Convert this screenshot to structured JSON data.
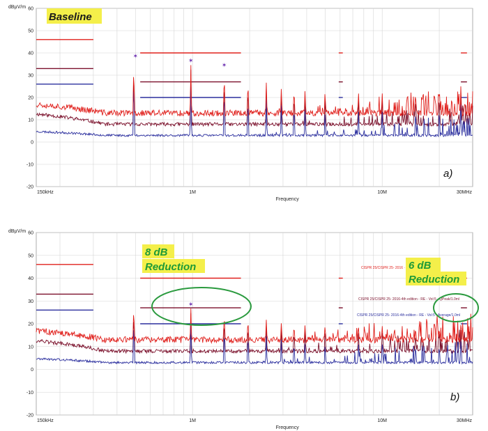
{
  "colors": {
    "peak": "#e0201c",
    "quasi_peak": "#7a0f2a",
    "average": "#2b2f9e",
    "grid": "#d4d4d4",
    "highlight": "#f4ef4a",
    "ellipse": "#2a9a3e",
    "reduction_text": "#1e9a37"
  },
  "chart_data": [
    {
      "type": "line",
      "panel_label": "a)",
      "annotations": [
        {
          "text": "Baseline"
        }
      ],
      "ylabel": "dBµV/m",
      "xlabel": "Frequency",
      "x_scale": "log",
      "xlim_hz": [
        150000,
        30000000
      ],
      "ylim": [
        -20,
        60
      ],
      "yticks": [
        60,
        50,
        40,
        30,
        20,
        10,
        0,
        -10,
        -20
      ],
      "ytick_labels": [
        "60",
        "50",
        "40",
        "30",
        "20",
        "10",
        "0",
        "-10",
        "-20"
      ],
      "xticks": [
        "150kHz",
        "1M",
        "Frequency",
        "10M",
        "30MHz"
      ],
      "grid": true,
      "limit_lines": [
        {
          "kind": "peak",
          "segments": [
            {
              "x": [
                150000,
                300000
              ],
              "y": 46
            },
            {
              "x": [
                530000,
                1800000
              ],
              "y": 40
            },
            {
              "x": [
                5900000,
                6200000
              ],
              "y": 40
            },
            {
              "x": [
                26000000,
                28000000
              ],
              "y": 40
            }
          ]
        },
        {
          "kind": "quasi-peak",
          "segments": [
            {
              "x": [
                150000,
                300000
              ],
              "y": 33
            },
            {
              "x": [
                530000,
                1800000
              ],
              "y": 27
            },
            {
              "x": [
                5900000,
                6200000
              ],
              "y": 27
            },
            {
              "x": [
                26000000,
                28000000
              ],
              "y": 27
            }
          ]
        },
        {
          "kind": "average",
          "segments": [
            {
              "x": [
                150000,
                300000
              ],
              "y": 26
            },
            {
              "x": [
                530000,
                1800000
              ],
              "y": 20
            },
            {
              "x": [
                5900000,
                6200000
              ],
              "y": 20
            },
            {
              "x": [
                26000000,
                28000000
              ],
              "y": 20
            }
          ]
        }
      ],
      "peak_noise_floor": 13,
      "average_floor": 3,
      "quasi_peak_floor": 8,
      "harmonic_markers_mhz": [
        0.5,
        0.98,
        1.47
      ],
      "harmonics": [
        {
          "f_mhz": 0.49,
          "peak": 37,
          "qp": 35,
          "avg": 32
        },
        {
          "f_mhz": 0.98,
          "peak": 35,
          "qp": 33,
          "avg": 29
        },
        {
          "f_mhz": 1.47,
          "peak": 33,
          "qp": 31,
          "avg": 27
        },
        {
          "f_mhz": 1.96,
          "peak": 29,
          "qp": 27,
          "avg": 22
        },
        {
          "f_mhz": 2.45,
          "peak": 27,
          "qp": 25,
          "avg": 20
        },
        {
          "f_mhz": 2.94,
          "peak": 25,
          "qp": 23,
          "avg": 18
        },
        {
          "f_mhz": 3.43,
          "peak": 25,
          "qp": 23,
          "avg": 18
        },
        {
          "f_mhz": 3.92,
          "peak": 24,
          "qp": 22,
          "avg": 16
        },
        {
          "f_mhz": 5.0,
          "peak": 24,
          "qp": 22,
          "avg": 15
        },
        {
          "f_mhz": 7.5,
          "peak": 23,
          "qp": 21,
          "avg": 15
        },
        {
          "f_mhz": 10.0,
          "peak": 23,
          "qp": 21,
          "avg": 15
        },
        {
          "f_mhz": 15.0,
          "peak": 24,
          "qp": 22,
          "avg": 16
        },
        {
          "f_mhz": 20.0,
          "peak": 25,
          "qp": 23,
          "avg": 17
        },
        {
          "f_mhz": 26.0,
          "peak": 26,
          "qp": 24,
          "avg": 18
        }
      ]
    },
    {
      "type": "line",
      "panel_label": "b)",
      "annotations": [
        {
          "text": "8 dB"
        },
        {
          "text": "Reduction"
        },
        {
          "text": "6 dB"
        },
        {
          "text": "Reduction"
        }
      ],
      "legend": [
        {
          "kind": "peak",
          "text": "CISPR 25/CISPR 25- 2016 · · · · Vol:5 - Peak/1.0ml"
        },
        {
          "kind": "quasi-peak",
          "text": "CISPR 25/CISPR 25- 2016-4th edition - RE - Vol:5 · QPeak/1.0ml"
        },
        {
          "kind": "average",
          "text": "CISPR 25/CISPR 25- 2016-4th edition - RE - Vol:5 - Average/1.0ml"
        }
      ],
      "ylabel": "dBµV/m",
      "xlabel": "Frequency",
      "x_scale": "log",
      "xlim_hz": [
        150000,
        30000000
      ],
      "ylim": [
        -20,
        60
      ],
      "yticks": [
        60,
        50,
        40,
        30,
        20,
        10,
        0,
        -10,
        -20
      ],
      "ytick_labels": [
        "60",
        "50",
        "40",
        "30",
        "20",
        "10",
        "0",
        "-10",
        "-20"
      ],
      "xticks": [
        "150kHz",
        "1M",
        "Frequency",
        "10M",
        "30MHz"
      ],
      "grid": true,
      "limit_lines": [
        {
          "kind": "peak",
          "segments": [
            {
              "x": [
                150000,
                300000
              ],
              "y": 46
            },
            {
              "x": [
                530000,
                1800000
              ],
              "y": 40
            },
            {
              "x": [
                5900000,
                6200000
              ],
              "y": 40
            },
            {
              "x": [
                26000000,
                28000000
              ],
              "y": 40
            }
          ]
        },
        {
          "kind": "quasi-peak",
          "segments": [
            {
              "x": [
                150000,
                300000
              ],
              "y": 33
            },
            {
              "x": [
                530000,
                1800000
              ],
              "y": 27
            },
            {
              "x": [
                5900000,
                6200000
              ],
              "y": 27
            },
            {
              "x": [
                26000000,
                28000000
              ],
              "y": 27
            }
          ]
        },
        {
          "kind": "average",
          "segments": [
            {
              "x": [
                150000,
                300000
              ],
              "y": 26
            },
            {
              "x": [
                530000,
                1800000
              ],
              "y": 20
            },
            {
              "x": [
                5900000,
                6200000
              ],
              "y": 20
            },
            {
              "x": [
                26000000,
                28000000
              ],
              "y": 20
            }
          ]
        }
      ],
      "peak_noise_floor": 13,
      "average_floor": 3,
      "quasi_peak_floor": 8,
      "harmonic_markers_mhz": [
        0.98
      ],
      "harmonics": [
        {
          "f_mhz": 0.49,
          "peak": 29,
          "qp": 27,
          "avg": 24
        },
        {
          "f_mhz": 0.98,
          "peak": 27,
          "qp": 25,
          "avg": 21
        },
        {
          "f_mhz": 1.47,
          "peak": 26,
          "qp": 24,
          "avg": 20
        },
        {
          "f_mhz": 1.96,
          "peak": 23,
          "qp": 21,
          "avg": 17
        },
        {
          "f_mhz": 2.45,
          "peak": 22,
          "qp": 20,
          "avg": 15
        },
        {
          "f_mhz": 2.94,
          "peak": 21,
          "qp": 19,
          "avg": 14
        },
        {
          "f_mhz": 3.43,
          "peak": 20,
          "qp": 18,
          "avg": 13
        },
        {
          "f_mhz": 3.92,
          "peak": 20,
          "qp": 18,
          "avg": 12
        },
        {
          "f_mhz": 5.0,
          "peak": 20,
          "qp": 18,
          "avg": 12
        },
        {
          "f_mhz": 7.5,
          "peak": 19,
          "qp": 17,
          "avg": 12
        },
        {
          "f_mhz": 10.0,
          "peak": 19,
          "qp": 17,
          "avg": 12
        },
        {
          "f_mhz": 15.0,
          "peak": 19,
          "qp": 17,
          "avg": 12
        },
        {
          "f_mhz": 20.0,
          "peak": 19,
          "qp": 17,
          "avg": 12
        },
        {
          "f_mhz": 26.0,
          "peak": 20,
          "qp": 18,
          "avg": 13
        }
      ]
    }
  ]
}
